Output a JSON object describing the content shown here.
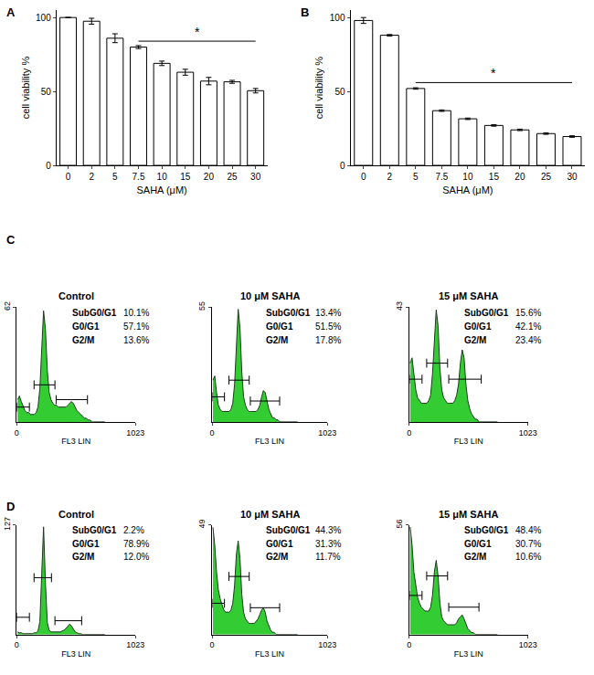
{
  "chart_data": [
    {
      "type": "bar",
      "panel_label": "A",
      "categories": [
        "0",
        "2",
        "5",
        "7.5",
        "10",
        "15",
        "20",
        "25",
        "30"
      ],
      "values": [
        100,
        97.5,
        86,
        80,
        69,
        63,
        57,
        56.5,
        50.5
      ],
      "errors": [
        0,
        2,
        3,
        1,
        1.5,
        2,
        2.5,
        1,
        1.5
      ],
      "color": "#ffffff",
      "x_label": "SAHA (μM)",
      "y_label": "cell viability %",
      "ylim": [
        0,
        105
      ],
      "yticks": [
        0,
        50,
        100
      ],
      "annotations": [
        {
          "text": "*",
          "from": "7.5",
          "to": "30",
          "y": 84
        }
      ]
    },
    {
      "type": "bar",
      "panel_label": "B",
      "categories": [
        "0",
        "2",
        "5",
        "7.5",
        "10",
        "15",
        "20",
        "25",
        "30"
      ],
      "values": [
        98,
        88,
        52,
        37,
        31.5,
        27,
        24,
        21.5,
        19.5
      ],
      "errors": [
        2,
        0.5,
        0.5,
        0.5,
        0.5,
        0.5,
        0.5,
        0.5,
        0.5
      ],
      "color": "#ffffff",
      "x_label": "SAHA (μM)",
      "y_label": "cell viability %",
      "ylim": [
        0,
        105
      ],
      "yticks": [
        0,
        50,
        100
      ],
      "annotations": [
        {
          "text": "*",
          "from": "5",
          "to": "30",
          "y": 56
        }
      ]
    },
    {
      "type": "histogram",
      "panel_label": "C",
      "title": "Control",
      "x_label": "FL3 LIN",
      "color": "#33cc33",
      "bins": [
        0,
        16,
        32,
        48,
        64,
        80,
        96,
        112,
        128,
        144,
        160,
        176,
        192,
        208,
        224,
        240,
        256,
        272,
        288,
        304,
        320,
        336,
        352,
        368,
        384,
        400,
        416,
        432,
        448,
        464,
        480,
        496,
        512,
        528,
        544,
        560,
        576,
        592,
        608,
        624,
        640,
        656,
        672,
        688,
        704,
        720,
        736,
        752,
        768
      ],
      "counts": [
        12,
        14,
        11,
        8,
        6,
        5,
        5,
        4,
        4,
        4,
        5,
        8,
        18,
        40,
        60,
        50,
        28,
        16,
        12,
        10,
        9,
        9,
        8,
        8,
        8,
        8,
        8,
        9,
        10,
        11,
        10,
        8,
        6,
        5,
        4,
        3,
        2,
        2,
        1,
        1,
        0,
        0,
        0,
        0,
        0,
        0,
        0,
        0
      ],
      "xlim": [
        0,
        1023
      ],
      "xticks": [
        0,
        1023
      ],
      "ylim": [
        0,
        62
      ],
      "yticks": [
        62
      ],
      "gates": [
        {
          "x": [
            0,
            110
          ],
          "y": 8
        },
        {
          "x": [
            150,
            330
          ],
          "y": 20
        },
        {
          "x": [
            340,
            610
          ],
          "y": 12
        }
      ],
      "stats": {
        "names": [
          "SubG0/G1",
          "G0/G1",
          "G2/M"
        ],
        "values": [
          10.1,
          57.1,
          13.6
        ],
        "value_labels": [
          "10.1%",
          "57.1%",
          "13.6%"
        ]
      }
    },
    {
      "type": "histogram",
      "title": "10 μM SAHA",
      "x_label": "FL3 LIN",
      "color": "#33cc33",
      "bins": [
        0,
        16,
        32,
        48,
        64,
        80,
        96,
        112,
        128,
        144,
        160,
        176,
        192,
        208,
        224,
        240,
        256,
        272,
        288,
        304,
        320,
        336,
        352,
        368,
        384,
        400,
        416,
        432,
        448,
        464,
        480,
        496,
        512,
        528,
        544,
        560,
        576,
        592,
        608,
        624,
        640,
        656,
        672,
        688,
        704,
        720,
        736,
        752,
        768
      ],
      "counts": [
        20,
        22,
        14,
        8,
        6,
        5,
        5,
        5,
        5,
        5,
        6,
        9,
        18,
        38,
        54,
        45,
        24,
        12,
        8,
        6,
        5,
        5,
        5,
        5,
        5,
        6,
        8,
        12,
        15,
        14,
        10,
        6,
        4,
        2,
        2,
        1,
        1,
        0,
        0,
        0,
        0,
        0,
        0,
        0,
        0,
        0,
        0,
        0
      ],
      "xlim": [
        0,
        1023
      ],
      "xticks": [
        0,
        1023
      ],
      "ylim": [
        0,
        55
      ],
      "yticks": [
        55
      ],
      "gates": [
        {
          "x": [
            0,
            110
          ],
          "y": 12
        },
        {
          "x": [
            150,
            330
          ],
          "y": 20
        },
        {
          "x": [
            340,
            600
          ],
          "y": 10
        }
      ],
      "stats": {
        "names": [
          "SubG0/G1",
          "G0/G1",
          "G2/M"
        ],
        "values": [
          13.4,
          51.5,
          17.8
        ],
        "value_labels": [
          "13.4%",
          "51.5%",
          "17.8%"
        ]
      }
    },
    {
      "type": "histogram",
      "title": "15 μM SAHA",
      "x_label": "FL3 LIN",
      "color": "#33cc33",
      "bins": [
        0,
        16,
        32,
        48,
        64,
        80,
        96,
        112,
        128,
        144,
        160,
        176,
        192,
        208,
        224,
        240,
        256,
        272,
        288,
        304,
        320,
        336,
        352,
        368,
        384,
        400,
        416,
        432,
        448,
        464,
        480,
        496,
        512,
        528,
        544,
        560,
        576,
        592,
        608,
        624,
        640,
        656,
        672,
        688,
        704,
        720,
        736,
        752,
        768
      ],
      "counts": [
        22,
        24,
        18,
        12,
        9,
        8,
        7,
        7,
        7,
        7,
        8,
        10,
        18,
        32,
        42,
        36,
        20,
        12,
        9,
        8,
        7,
        7,
        7,
        7,
        8,
        10,
        14,
        22,
        27,
        24,
        14,
        8,
        5,
        3,
        2,
        1,
        1,
        0,
        0,
        0,
        0,
        0,
        0,
        0,
        0,
        0,
        0,
        0
      ],
      "xlim": [
        0,
        1023
      ],
      "xticks": [
        0,
        1023
      ],
      "ylim": [
        0,
        43
      ],
      "yticks": [
        43
      ],
      "gates": [
        {
          "x": [
            0,
            110
          ],
          "y": 16
        },
        {
          "x": [
            150,
            330
          ],
          "y": 22
        },
        {
          "x": [
            340,
            620
          ],
          "y": 16
        }
      ],
      "stats": {
        "names": [
          "SubG0/G1",
          "G0/G1",
          "G2/M"
        ],
        "values": [
          15.6,
          42.1,
          23.4
        ],
        "value_labels": [
          "15.6%",
          "42.1%",
          "23.4%"
        ]
      }
    },
    {
      "type": "histogram",
      "panel_label": "D",
      "title": "Control",
      "x_label": "FL3 LIN",
      "color": "#33cc33",
      "bins": [
        0,
        16,
        32,
        48,
        64,
        80,
        96,
        112,
        128,
        144,
        160,
        176,
        192,
        208,
        224,
        240,
        256,
        272,
        288,
        304,
        320,
        336,
        352,
        368,
        384,
        400,
        416,
        432,
        448,
        464,
        480,
        496,
        512,
        528,
        544,
        560,
        576,
        592,
        608,
        624,
        640,
        656,
        672,
        688,
        704,
        720,
        736,
        752,
        768
      ],
      "counts": [
        3,
        2,
        2,
        1,
        1,
        1,
        1,
        1,
        1,
        2,
        2,
        4,
        15,
        70,
        125,
        60,
        14,
        5,
        3,
        3,
        3,
        3,
        3,
        3,
        4,
        5,
        7,
        10,
        12,
        10,
        6,
        3,
        2,
        1,
        1,
        0,
        0,
        0,
        0,
        0,
        0,
        0,
        0,
        0,
        0,
        0,
        0,
        0
      ],
      "xlim": [
        0,
        1023
      ],
      "xticks": [
        0,
        1023
      ],
      "ylim": [
        0,
        127
      ],
      "yticks": [
        127
      ],
      "gates": [
        {
          "x": [
            0,
            110
          ],
          "y": 20
        },
        {
          "x": [
            150,
            300
          ],
          "y": 66
        },
        {
          "x": [
            330,
            560
          ],
          "y": 16
        }
      ],
      "stats": {
        "names": [
          "SubG0/G1",
          "G0/G1",
          "G2/M"
        ],
        "values": [
          2.2,
          78.9,
          12.0
        ],
        "value_labels": [
          "2.2%",
          "78.9%",
          "12.0%"
        ]
      }
    },
    {
      "type": "histogram",
      "title": "10 μM SAHA",
      "x_label": "FL3 LIN",
      "color": "#33cc33",
      "bins": [
        0,
        16,
        32,
        48,
        64,
        80,
        96,
        112,
        128,
        144,
        160,
        176,
        192,
        208,
        224,
        240,
        256,
        272,
        288,
        304,
        320,
        336,
        352,
        368,
        384,
        400,
        416,
        432,
        448,
        464,
        480,
        496,
        512,
        528,
        544,
        560,
        576,
        592,
        608,
        624,
        640,
        656,
        672,
        688,
        704,
        720,
        736,
        752,
        768
      ],
      "counts": [
        48,
        40,
        28,
        20,
        16,
        13,
        11,
        10,
        10,
        10,
        11,
        14,
        22,
        36,
        42,
        34,
        18,
        10,
        7,
        6,
        5,
        5,
        5,
        5,
        6,
        7,
        9,
        11,
        12,
        10,
        6,
        4,
        2,
        1,
        1,
        0,
        0,
        0,
        0,
        0,
        0,
        0,
        0,
        0,
        0,
        0,
        0,
        0
      ],
      "xlim": [
        0,
        1023
      ],
      "xticks": [
        0,
        1023
      ],
      "ylim": [
        0,
        49
      ],
      "yticks": [
        49
      ],
      "gates": [
        {
          "x": [
            0,
            110
          ],
          "y": 14
        },
        {
          "x": [
            150,
            330
          ],
          "y": 26
        },
        {
          "x": [
            340,
            600
          ],
          "y": 12
        }
      ],
      "stats": {
        "names": [
          "SubG0/G1",
          "G0/G1",
          "G2/M"
        ],
        "values": [
          44.3,
          31.3,
          11.7
        ],
        "value_labels": [
          "44.3%",
          "31.3%",
          "11.7%"
        ]
      }
    },
    {
      "type": "histogram",
      "title": "15 μM SAHA",
      "x_label": "FL3 LIN",
      "color": "#33cc33",
      "bins": [
        0,
        16,
        32,
        48,
        64,
        80,
        96,
        112,
        128,
        144,
        160,
        176,
        192,
        208,
        224,
        240,
        256,
        272,
        288,
        304,
        320,
        336,
        352,
        368,
        384,
        400,
        416,
        432,
        448,
        464,
        480,
        496,
        512,
        528,
        544,
        560,
        576,
        592,
        608,
        624,
        640,
        656,
        672,
        688,
        704,
        720,
        736,
        752,
        768
      ],
      "counts": [
        55,
        46,
        32,
        24,
        19,
        16,
        14,
        13,
        12,
        12,
        12,
        14,
        20,
        32,
        38,
        30,
        16,
        9,
        7,
        6,
        5,
        5,
        5,
        5,
        5,
        6,
        8,
        9,
        10,
        8,
        5,
        3,
        2,
        1,
        1,
        0,
        0,
        0,
        0,
        0,
        0,
        0,
        0,
        0,
        0,
        0,
        0,
        0
      ],
      "xlim": [
        0,
        1023
      ],
      "xticks": [
        0,
        1023
      ],
      "ylim": [
        0,
        56
      ],
      "yticks": [
        56
      ],
      "gates": [
        {
          "x": [
            0,
            110
          ],
          "y": 20
        },
        {
          "x": [
            150,
            330
          ],
          "y": 30
        },
        {
          "x": [
            340,
            600
          ],
          "y": 14
        }
      ],
      "stats": {
        "names": [
          "SubG0/G1",
          "G0/G1",
          "G2/M"
        ],
        "values": [
          48.4,
          30.7,
          10.6
        ],
        "value_labels": [
          "48.4%",
          "30.7%",
          "10.6%"
        ]
      }
    }
  ]
}
